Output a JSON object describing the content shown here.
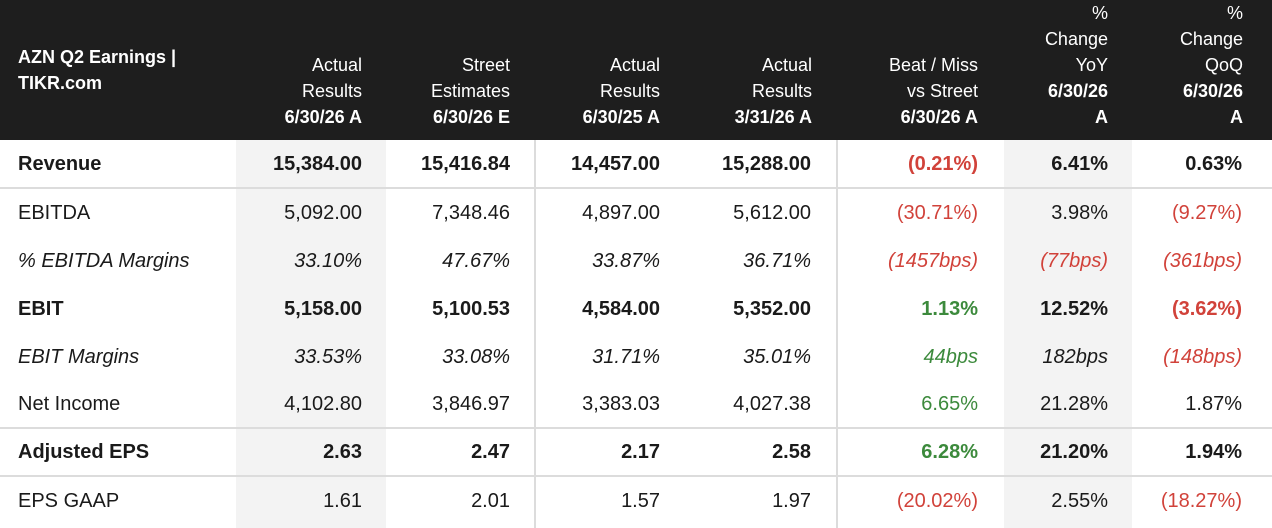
{
  "title": "AZN Q2 Earnings |\nTIKR.com",
  "columns": [
    {
      "label": "Actual\nResults",
      "date": "6/30/26 A"
    },
    {
      "label": "Street\nEstimates",
      "date": "6/30/26 E"
    },
    {
      "label": "Actual\nResults",
      "date": "6/30/25 A"
    },
    {
      "label": "Actual\nResults",
      "date": "3/31/26 A"
    },
    {
      "label": "Beat / Miss\nvs Street",
      "date": "6/30/26 A"
    },
    {
      "label": "%\nChange\nYoY",
      "date": "6/30/26\nA"
    },
    {
      "label": "%\nChange\nQoQ",
      "date": "6/30/26\nA"
    }
  ],
  "rows": [
    {
      "label": "Revenue",
      "values": [
        "15,384.00",
        "15,416.84",
        "14,457.00",
        "15,288.00",
        "(0.21%)",
        "6.41%",
        "0.63%"
      ]
    },
    {
      "label": "EBITDA",
      "values": [
        "5,092.00",
        "7,348.46",
        "4,897.00",
        "5,612.00",
        "(30.71%)",
        "3.98%",
        "(9.27%)"
      ]
    },
    {
      "label": "% EBITDA Margins",
      "values": [
        "33.10%",
        "47.67%",
        "33.87%",
        "36.71%",
        "(1457bps)",
        "(77bps)",
        "(361bps)"
      ]
    },
    {
      "label": "EBIT",
      "values": [
        "5,158.00",
        "5,100.53",
        "4,584.00",
        "5,352.00",
        "1.13%",
        "12.52%",
        "(3.62%)"
      ]
    },
    {
      "label": "EBIT Margins",
      "values": [
        "33.53%",
        "33.08%",
        "31.71%",
        "35.01%",
        "44bps",
        "182bps",
        "(148bps)"
      ]
    },
    {
      "label": "Net Income",
      "values": [
        "4,102.80",
        "3,846.97",
        "3,383.03",
        "4,027.38",
        "6.65%",
        "21.28%",
        "1.87%"
      ]
    },
    {
      "label": "Adjusted EPS",
      "values": [
        "2.63",
        "2.47",
        "2.17",
        "2.58",
        "6.28%",
        "21.20%",
        "1.94%"
      ]
    },
    {
      "label": "EPS GAAP",
      "values": [
        "1.61",
        "2.01",
        "1.57",
        "1.97",
        "(20.02%)",
        "2.55%",
        "(18.27%)"
      ]
    }
  ],
  "colors": {
    "negative": "#d1423a",
    "positive": "#3c8a3c",
    "header_bg": "#1e1e1e"
  }
}
